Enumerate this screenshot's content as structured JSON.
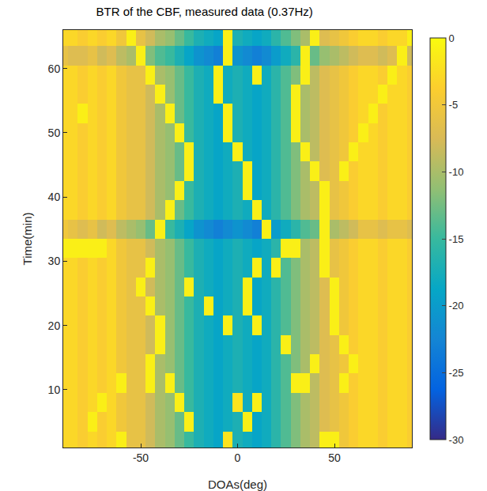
{
  "chart_data": {
    "type": "heatmap",
    "title": "BTR of the CBF, measured data (0.37Hz)",
    "x_label": "DOAs(deg)",
    "y_label": "Time(min)",
    "x": [
      -90,
      -85,
      -80,
      -75,
      -70,
      -65,
      -60,
      -55,
      -50,
      -45,
      -40,
      -35,
      -30,
      -25,
      -20,
      -15,
      -10,
      -5,
      0,
      5,
      10,
      15,
      20,
      25,
      30,
      35,
      40,
      45,
      50,
      55,
      60,
      65,
      70,
      75,
      80,
      85,
      90
    ],
    "y": [
      2,
      5,
      8,
      11,
      14,
      17,
      20,
      23,
      26,
      29,
      32,
      35,
      38,
      41,
      44,
      47,
      50,
      53,
      56,
      59,
      62,
      65
    ],
    "z": [
      [
        -3,
        -3,
        -4,
        -3,
        -4,
        -3,
        -1,
        -6,
        -6,
        -8,
        -10,
        -11,
        -13,
        -15,
        -17,
        -18,
        -19,
        -2,
        -17,
        -18,
        -19,
        -18,
        -16,
        -14,
        -12,
        -10,
        -9,
        -1,
        -1,
        -5,
        -4,
        -3,
        -3,
        -4,
        -3,
        -3,
        -4
      ],
      [
        -3,
        -3,
        -4,
        -1,
        -4,
        -3,
        -5,
        -6,
        -6,
        -8,
        -10,
        -11,
        -13,
        -1,
        -17,
        -18,
        -19,
        -18,
        -17,
        -1,
        -19,
        -18,
        -16,
        -14,
        -12,
        -10,
        -9,
        -7,
        -6,
        -5,
        -4,
        -3,
        -3,
        -4,
        -3,
        -3,
        -4
      ],
      [
        -3,
        -3,
        -4,
        -3,
        -1,
        -3,
        -5,
        -6,
        -6,
        -8,
        -10,
        -11,
        -1,
        -15,
        -17,
        -18,
        -19,
        -18,
        -2,
        -18,
        -1,
        -18,
        -16,
        -14,
        -12,
        -10,
        -9,
        -7,
        -6,
        -5,
        -4,
        -3,
        -3,
        -4,
        -3,
        -3,
        -4
      ],
      [
        -3,
        -3,
        -4,
        -3,
        -4,
        -3,
        -1,
        -6,
        -6,
        -1,
        -10,
        -1,
        -13,
        -15,
        -17,
        -18,
        -19,
        -18,
        -17,
        -18,
        -19,
        -18,
        -16,
        -14,
        -1,
        -1,
        -9,
        -7,
        -6,
        -1,
        -4,
        -3,
        -3,
        -4,
        -3,
        -3,
        -4
      ],
      [
        -3,
        -3,
        -4,
        -3,
        -4,
        -3,
        -5,
        -6,
        -6,
        -1,
        -10,
        -11,
        -13,
        -15,
        -17,
        -18,
        -19,
        -18,
        -17,
        -18,
        -19,
        -18,
        -16,
        -14,
        -12,
        -10,
        -1,
        -7,
        -6,
        -5,
        -1,
        -3,
        -3,
        -4,
        -3,
        -3,
        -4
      ],
      [
        -3,
        -3,
        -4,
        -3,
        -4,
        -3,
        -5,
        -6,
        -6,
        -8,
        -1,
        -11,
        -13,
        -15,
        -17,
        -18,
        -19,
        -18,
        -17,
        -18,
        -19,
        -18,
        -16,
        -1,
        -12,
        -10,
        -9,
        -7,
        -6,
        -1,
        -4,
        -3,
        -3,
        -4,
        -3,
        -3,
        -4
      ],
      [
        -3,
        -3,
        -4,
        -3,
        -4,
        -3,
        -5,
        -6,
        -6,
        -8,
        -1,
        -11,
        -13,
        -15,
        -17,
        -18,
        -19,
        -1,
        -17,
        -18,
        -1,
        -18,
        -16,
        -14,
        -12,
        -10,
        -9,
        -7,
        -1,
        -5,
        -4,
        -3,
        -3,
        -4,
        -3,
        -3,
        -4
      ],
      [
        -3,
        -3,
        -4,
        -3,
        -4,
        -3,
        -5,
        -6,
        -6,
        -1,
        -10,
        -11,
        -13,
        -15,
        -17,
        -1,
        -19,
        -18,
        -17,
        -1,
        -19,
        -18,
        -16,
        -14,
        -12,
        -10,
        -9,
        -7,
        -1,
        -5,
        -4,
        -3,
        -3,
        -4,
        -3,
        -3,
        -4
      ],
      [
        -3,
        -3,
        -4,
        -3,
        -4,
        -3,
        -5,
        -6,
        -1,
        -8,
        -10,
        -11,
        -13,
        -1,
        -17,
        -18,
        -19,
        -18,
        -17,
        -1,
        -19,
        -18,
        -16,
        -14,
        -12,
        -10,
        -9,
        -7,
        -1,
        -5,
        -4,
        -3,
        -3,
        -4,
        -3,
        -3,
        -4
      ],
      [
        -3,
        -3,
        -4,
        -3,
        -4,
        -3,
        -5,
        -6,
        -6,
        -1,
        -10,
        -11,
        -13,
        -15,
        -17,
        -18,
        -19,
        -18,
        -17,
        -18,
        -1,
        -18,
        -1,
        -14,
        -12,
        -10,
        -9,
        -1,
        -6,
        -5,
        -4,
        -3,
        -3,
        -4,
        -3,
        -3,
        -4
      ],
      [
        -1,
        -1,
        -1,
        -1,
        -1,
        -3,
        -5,
        -6,
        -6,
        -8,
        -10,
        -11,
        -13,
        -15,
        -17,
        -18,
        -19,
        -18,
        -17,
        -18,
        -19,
        -18,
        -16,
        -1,
        -1,
        -10,
        -9,
        -1,
        -6,
        -5,
        -4,
        -3,
        -3,
        -4,
        -3,
        -3,
        -4
      ],
      [
        -5,
        -6,
        -7,
        -6,
        -8,
        -7,
        -9,
        -10,
        -11,
        -13,
        -1,
        -15,
        -17,
        -19,
        -21,
        -22,
        -23,
        -22,
        -21,
        -22,
        -23,
        -1,
        -20,
        -18,
        -16,
        -14,
        -13,
        -1,
        -10,
        -9,
        -8,
        -6,
        -6,
        -7,
        -6,
        -6,
        -7
      ],
      [
        -3,
        -3,
        -4,
        -3,
        -4,
        -3,
        -5,
        -6,
        -6,
        -8,
        -10,
        -1,
        -13,
        -15,
        -17,
        -18,
        -19,
        -18,
        -17,
        -18,
        -1,
        -18,
        -16,
        -14,
        -12,
        -10,
        -9,
        -1,
        -6,
        -5,
        -4,
        -3,
        -3,
        -4,
        -3,
        -3,
        -4
      ],
      [
        -3,
        -3,
        -4,
        -3,
        -4,
        -3,
        -5,
        -6,
        -6,
        -8,
        -10,
        -11,
        -1,
        -15,
        -17,
        -18,
        -19,
        -18,
        -17,
        -1,
        -19,
        -18,
        -16,
        -14,
        -12,
        -10,
        -9,
        -1,
        -6,
        -5,
        -4,
        -3,
        -3,
        -4,
        -3,
        -3,
        -4
      ],
      [
        -3,
        -3,
        -4,
        -3,
        -4,
        -3,
        -5,
        -6,
        -6,
        -8,
        -10,
        -11,
        -13,
        -1,
        -17,
        -18,
        -19,
        -18,
        -17,
        -1,
        -19,
        -18,
        -16,
        -14,
        -12,
        -10,
        -1,
        -7,
        -6,
        -1,
        -4,
        -3,
        -3,
        -4,
        -3,
        -3,
        -4
      ],
      [
        -3,
        -3,
        -4,
        -3,
        -4,
        -3,
        -5,
        -6,
        -6,
        -8,
        -10,
        -11,
        -13,
        -1,
        -17,
        -18,
        -19,
        -18,
        -1,
        -18,
        -19,
        -18,
        -16,
        -14,
        -12,
        -1,
        -9,
        -7,
        -6,
        -5,
        -1,
        -3,
        -3,
        -4,
        -3,
        -3,
        -4
      ],
      [
        -3,
        -3,
        -4,
        -3,
        -4,
        -3,
        -5,
        -6,
        -6,
        -8,
        -10,
        -11,
        -1,
        -15,
        -17,
        -18,
        -19,
        -1,
        -17,
        -18,
        -19,
        -18,
        -16,
        -14,
        -1,
        -10,
        -9,
        -7,
        -6,
        -5,
        -4,
        -1,
        -3,
        -4,
        -3,
        -3,
        -4
      ],
      [
        -3,
        -3,
        -1,
        -3,
        -4,
        -3,
        -5,
        -6,
        -6,
        -8,
        -10,
        -1,
        -13,
        -15,
        -17,
        -18,
        -19,
        -1,
        -17,
        -18,
        -19,
        -18,
        -16,
        -14,
        -1,
        -10,
        -9,
        -7,
        -6,
        -5,
        -4,
        -3,
        -1,
        -4,
        -3,
        -3,
        -4
      ],
      [
        -3,
        -3,
        -4,
        -3,
        -4,
        -3,
        -5,
        -6,
        -6,
        -8,
        -1,
        -11,
        -13,
        -15,
        -17,
        -18,
        -1,
        -18,
        -17,
        -18,
        -19,
        -18,
        -16,
        -14,
        -1,
        -10,
        -9,
        -7,
        -6,
        -5,
        -4,
        -3,
        -3,
        -1,
        -3,
        -3,
        -4
      ],
      [
        -3,
        -3,
        -4,
        -3,
        -4,
        -3,
        -5,
        -6,
        -6,
        -1,
        -10,
        -11,
        -13,
        -15,
        -17,
        -18,
        -1,
        -18,
        -17,
        -18,
        -1,
        -18,
        -16,
        -14,
        -12,
        -1,
        -9,
        -7,
        -6,
        -5,
        -4,
        -3,
        -3,
        -4,
        -1,
        -3,
        -4
      ],
      [
        -6,
        -7,
        -7,
        -6,
        -8,
        -7,
        -9,
        -10,
        -1,
        -12,
        -14,
        -15,
        -17,
        -19,
        -21,
        -22,
        -23,
        -1,
        -21,
        -22,
        -23,
        -22,
        -20,
        -18,
        -16,
        -1,
        -13,
        -11,
        -10,
        -9,
        -8,
        -7,
        -7,
        -8,
        -7,
        -1,
        -8
      ],
      [
        -3,
        -3,
        -4,
        -3,
        -4,
        -3,
        -5,
        -1,
        -6,
        -8,
        -10,
        -11,
        -13,
        -15,
        -17,
        -18,
        -19,
        -1,
        -17,
        -18,
        -19,
        -18,
        -16,
        -14,
        -12,
        -10,
        -1,
        -7,
        -6,
        -5,
        -4,
        -3,
        -3,
        -4,
        -3,
        -3,
        -1
      ]
    ],
    "xlim": [
      -90,
      90
    ],
    "xticks": [
      -50,
      0,
      50
    ],
    "ylim": [
      1,
      66
    ],
    "yticks": [
      10,
      20,
      30,
      40,
      50,
      60
    ],
    "zlim": [
      -30,
      0
    ],
    "zticks": [
      -30,
      -25,
      -20,
      -15,
      -10,
      -5,
      0
    ],
    "grid": false
  }
}
